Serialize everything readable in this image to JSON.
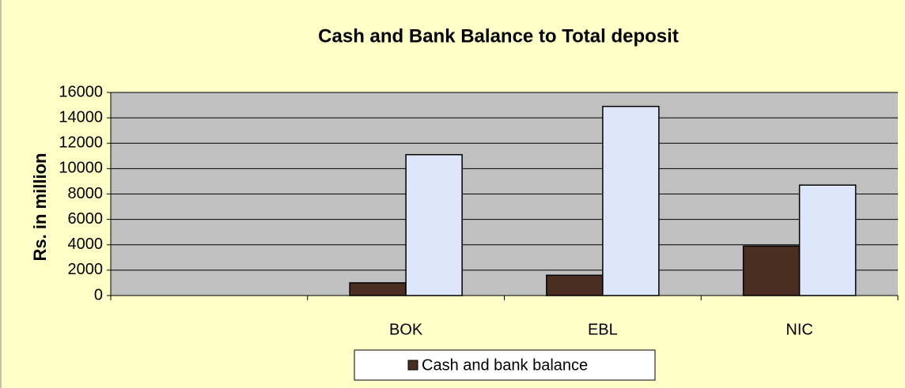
{
  "chart_data": {
    "type": "bar",
    "title": "Cash and Bank Balance to Total deposit",
    "y_label": "Rs. in million",
    "categories": [
      null,
      "BOK",
      "EBL",
      "NIC"
    ],
    "series": [
      {
        "name": "Cash and bank balance",
        "color": "#4a2e22",
        "values": [
          null,
          1000,
          1600,
          3900
        ]
      },
      {
        "color": "#dde6fa",
        "values": [
          null,
          11100,
          14900,
          8700
        ]
      }
    ],
    "ylim": [
      0,
      16000
    ],
    "yticks": [
      0,
      2000,
      4000,
      6000,
      8000,
      10000,
      12000,
      14000,
      16000
    ],
    "grid": true,
    "legend": "bottom"
  }
}
